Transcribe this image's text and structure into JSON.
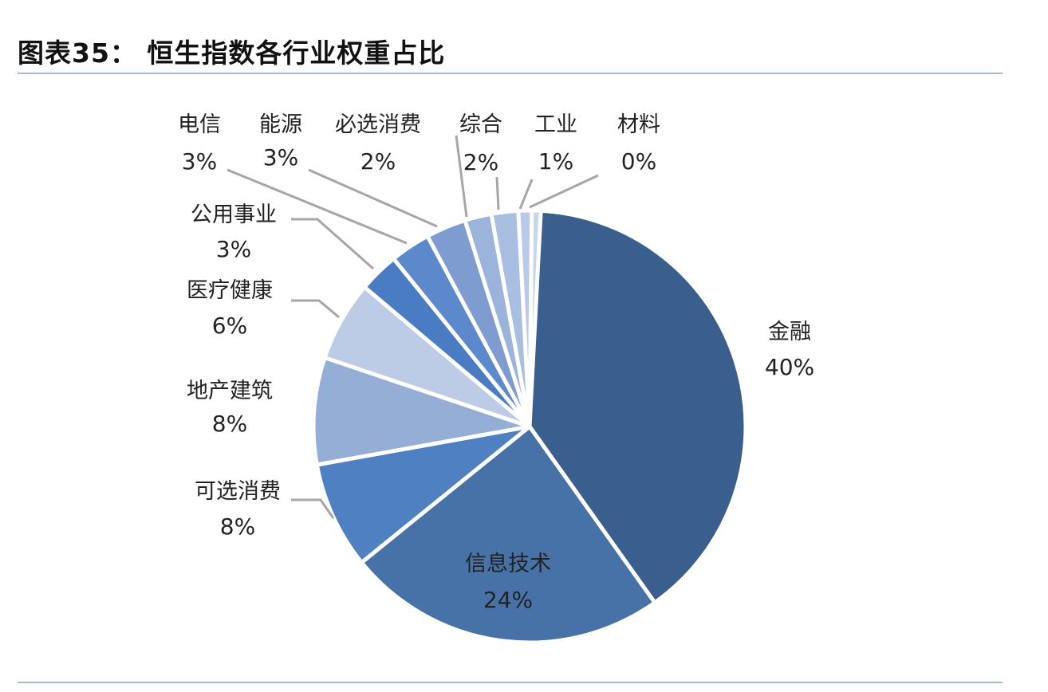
{
  "title": "图表35：  恒生指数各行业权重占比",
  "chart_data": {
    "type": "pie",
    "title": "",
    "slices": [
      {
        "label": "金融",
        "value": 40,
        "value_label": "40%",
        "color": "#3a5f8e"
      },
      {
        "label": "信息技术",
        "value": 24,
        "value_label": "24%",
        "color": "#4672a8"
      },
      {
        "label": "可选消费",
        "value": 8,
        "value_label": "8%",
        "color": "#4f81c2"
      },
      {
        "label": "地产建筑",
        "value": 8,
        "value_label": "8%",
        "color": "#95aed6"
      },
      {
        "label": "医疗健康",
        "value": 6,
        "value_label": "6%",
        "color": "#bccbe6"
      },
      {
        "label": "公用事业",
        "value": 3,
        "value_label": "3%",
        "color": "#4a7cc4"
      },
      {
        "label": "电信",
        "value": 3,
        "value_label": "3%",
        "color": "#5c88cc"
      },
      {
        "label": "能源",
        "value": 3,
        "value_label": "3%",
        "color": "#7e9ccf"
      },
      {
        "label": "必选消费",
        "value": 2,
        "value_label": "2%",
        "color": "#9cb3dc"
      },
      {
        "label": "综合",
        "value": 2,
        "value_label": "2%",
        "color": "#a9bfe2"
      },
      {
        "label": "工业",
        "value": 1,
        "value_label": "1%",
        "color": "#b8cae8"
      },
      {
        "label": "材料",
        "value": 0,
        "value_label": "0%",
        "color": "#c7d6ee"
      }
    ]
  }
}
